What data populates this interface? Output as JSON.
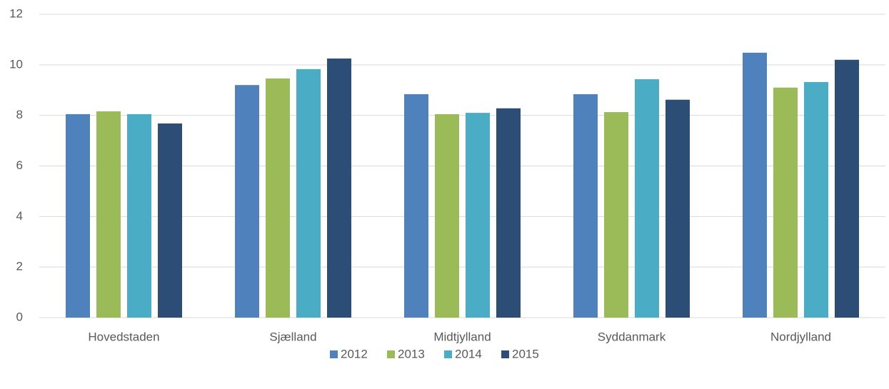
{
  "chart_data": {
    "type": "bar",
    "categories": [
      "Hovedstaden",
      "Sjælland",
      "Midtjylland",
      "Syddanmark",
      "Nordjylland"
    ],
    "series": [
      {
        "name": "2012",
        "color": "#4f81bd",
        "values": [
          8.05,
          9.2,
          8.84,
          8.84,
          10.48
        ]
      },
      {
        "name": "2013",
        "color": "#9bbb59",
        "values": [
          8.16,
          9.46,
          8.05,
          8.13,
          9.1
        ]
      },
      {
        "name": "2014",
        "color": "#4bacc6",
        "values": [
          8.05,
          9.83,
          8.1,
          9.43,
          9.32
        ]
      },
      {
        "name": "2015",
        "color": "#2c4d75",
        "values": [
          7.68,
          10.25,
          8.28,
          8.62,
          10.2
        ]
      }
    ],
    "ylim": [
      0,
      12
    ],
    "yticks": [
      0,
      2,
      4,
      6,
      8,
      10,
      12
    ],
    "grid": true,
    "legend": "bottom"
  }
}
